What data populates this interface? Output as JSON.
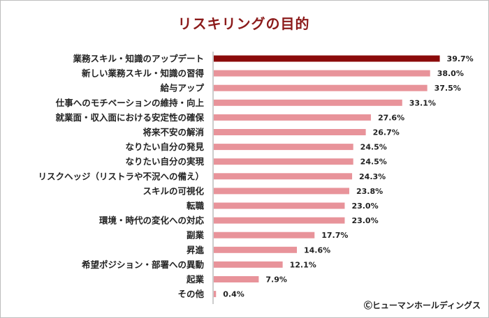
{
  "chart_data": {
    "type": "bar",
    "orientation": "horizontal",
    "title": "リスキリングの目的",
    "categories": [
      "業務スキル・知識のアップデート",
      "新しい業務スキル・知識の習得",
      "給与アップ",
      "仕事へのモチベーションの維持・向上",
      "就業面・収入面における安定性の確保",
      "将来不安の解消",
      "なりたい自分の発見",
      "なりたい自分の実現",
      "リスクヘッジ（リストラや不況への備え）",
      "スキルの可視化",
      "転職",
      "環境・時代の変化への対応",
      "副業",
      "昇進",
      "希望ポジション・部署への異動",
      "起業",
      "その他"
    ],
    "values": [
      39.7,
      38.0,
      37.5,
      33.1,
      27.6,
      26.7,
      24.5,
      24.5,
      24.3,
      23.8,
      23.0,
      23.0,
      17.7,
      14.6,
      12.1,
      7.9,
      0.4
    ],
    "value_labels": [
      "39.7%",
      "38.0%",
      "37.5%",
      "33.1%",
      "27.6%",
      "26.7%",
      "24.5%",
      "24.5%",
      "24.3%",
      "23.8%",
      "23.0%",
      "23.0%",
      "17.7%",
      "14.6%",
      "12.1%",
      "7.9%",
      "0.4%"
    ],
    "xlim": [
      0,
      40
    ],
    "grid": false,
    "colors": {
      "highlight": "#8b0a0a",
      "bar": "#e8939a",
      "axis": "#999999",
      "title": "#8b1a1a"
    }
  },
  "credit": "Ⓒヒューマンホールディングス"
}
